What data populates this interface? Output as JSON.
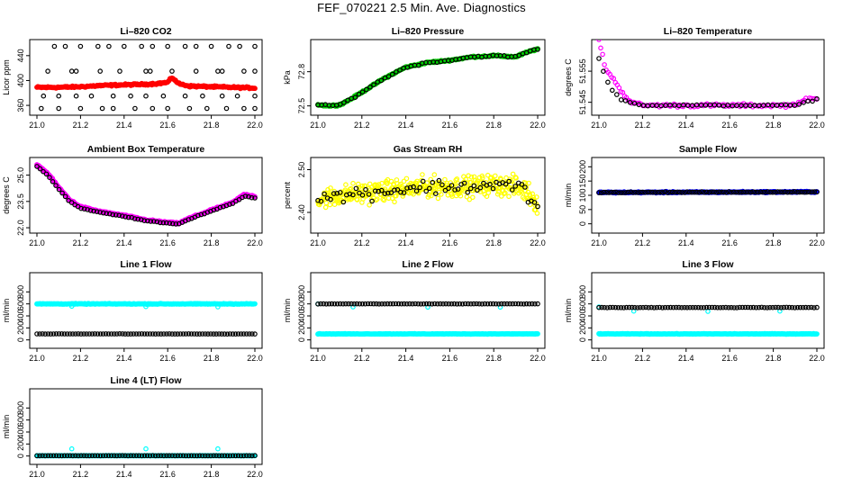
{
  "title": "FEF_070221  2.5 Min. Ave. Diagnostics",
  "colors": {
    "red": "#ff0000",
    "green": "#00cc00",
    "magenta": "#ff00ff",
    "yellow": "#ffff00",
    "blue": "#0000ff",
    "cyan": "#00ffff",
    "black": "#000000"
  },
  "chart_data": [
    {
      "id": "co2",
      "type": "scatter",
      "title": "Li–820 CO2",
      "ylabel": "Licor ppm",
      "xlim": [
        21.0,
        22.0
      ],
      "ylim": [
        350,
        460
      ],
      "xticks": [
        "21.0",
        "21.2",
        "21.4",
        "21.6",
        "21.8",
        "22.0"
      ],
      "yticks": [
        {
          "v": 360,
          "t": "360"
        },
        {
          "v": 400,
          "t": "400"
        },
        {
          "v": 440,
          "t": "440"
        }
      ],
      "series": [
        {
          "color": "red",
          "kind": "dense",
          "x": [
            21.0,
            21.1,
            21.2,
            21.3,
            21.4,
            21.5,
            21.55,
            21.6,
            21.62,
            21.65,
            21.7,
            21.8,
            21.9,
            22.0
          ],
          "y": [
            389,
            389,
            390,
            392,
            393,
            394,
            395,
            397,
            405,
            395,
            391,
            390,
            389,
            388
          ],
          "noise": 2
        },
        {
          "color": "black",
          "kind": "open",
          "x": [
            21.08,
            21.13,
            21.2,
            21.28,
            21.33,
            21.4,
            21.48,
            21.53,
            21.6,
            21.68,
            21.73,
            21.8,
            21.88,
            21.93,
            22.0
          ],
          "y": [
            455,
            455,
            455,
            455,
            455,
            455,
            455,
            455,
            455,
            455,
            455,
            455,
            455,
            455,
            455
          ]
        },
        {
          "color": "black",
          "kind": "open",
          "x": [
            21.05,
            21.16,
            21.18,
            21.29,
            21.38,
            21.5,
            21.52,
            21.62,
            21.73,
            21.83,
            21.85,
            21.95,
            22.0
          ],
          "y": [
            415,
            415,
            415,
            415,
            415,
            415,
            415,
            415,
            415,
            415,
            415,
            415,
            415
          ]
        },
        {
          "color": "black",
          "kind": "open",
          "x": [
            21.03,
            21.1,
            21.18,
            21.25,
            21.35,
            21.43,
            21.5,
            21.58,
            21.68,
            21.76,
            21.85,
            21.92,
            22.0
          ],
          "y": [
            375,
            375,
            375,
            375,
            375,
            375,
            375,
            375,
            375,
            375,
            375,
            375,
            375
          ]
        },
        {
          "color": "black",
          "kind": "open",
          "x": [
            21.02,
            21.1,
            21.2,
            21.3,
            21.35,
            21.45,
            21.53,
            21.6,
            21.7,
            21.78,
            21.87,
            21.95,
            22.0
          ],
          "y": [
            355,
            355,
            355,
            355,
            355,
            355,
            355,
            355,
            355,
            355,
            355,
            355,
            355
          ]
        }
      ]
    },
    {
      "id": "pressure",
      "type": "scatter",
      "title": "Li–820 Pressure",
      "ylabel": "kPa",
      "xlim": [
        21.0,
        22.0
      ],
      "ylim": [
        72.45,
        73.05
      ],
      "xticks": [
        "21.0",
        "21.2",
        "21.4",
        "21.6",
        "21.8",
        "22.0"
      ],
      "yticks": [
        {
          "v": 72.5,
          "t": "72.5"
        },
        {
          "v": 72.8,
          "t": "72.8"
        }
      ],
      "series": [
        {
          "color": "green",
          "kind": "dense",
          "x": [
            21.0,
            21.05,
            21.1,
            21.15,
            21.2,
            21.3,
            21.4,
            21.5,
            21.6,
            21.7,
            21.8,
            21.9,
            21.95,
            22.0
          ],
          "y": [
            72.51,
            72.5,
            72.51,
            72.56,
            72.62,
            72.74,
            72.84,
            72.88,
            72.9,
            72.93,
            72.94,
            72.93,
            72.97,
            73.0
          ],
          "noise": 0.01
        },
        {
          "color": "black",
          "kind": "trail",
          "x": [
            21.0,
            21.05,
            21.1,
            21.15,
            21.2,
            21.3,
            21.4,
            21.5,
            21.6,
            21.7,
            21.8,
            21.9,
            21.95,
            22.0
          ],
          "y": [
            72.51,
            72.5,
            72.51,
            72.56,
            72.62,
            72.74,
            72.84,
            72.88,
            72.9,
            72.93,
            72.94,
            72.93,
            72.97,
            73.0
          ],
          "n": 60,
          "noise": 0.01
        }
      ]
    },
    {
      "id": "temp",
      "type": "scatter",
      "title": "Li–820 Temperature",
      "ylabel": "degrees C",
      "xlim": [
        21.0,
        22.0
      ],
      "ylim": [
        51.542,
        51.564
      ],
      "xticks": [
        "21.0",
        "21.2",
        "21.4",
        "21.6",
        "21.8",
        "22.0"
      ],
      "yticks": [
        {
          "v": 51.545,
          "t": "51.545"
        },
        {
          "v": 51.555,
          "t": "51.555"
        }
      ],
      "series": [
        {
          "color": "magenta",
          "kind": "trail",
          "x": [
            21.0,
            21.03,
            21.06,
            21.09,
            21.12,
            21.15,
            21.2,
            21.4,
            21.6,
            21.8,
            21.88,
            21.92,
            21.96,
            22.0
          ],
          "y": [
            51.565,
            51.556,
            51.553,
            51.55,
            51.547,
            51.545,
            51.544,
            51.544,
            51.544,
            51.544,
            51.544,
            51.545,
            51.546,
            51.546
          ],
          "n": 120,
          "noise": 0.0008
        },
        {
          "color": "black",
          "kind": "trail",
          "x": [
            21.0,
            21.03,
            21.06,
            21.1,
            21.15,
            21.2,
            21.6,
            21.9,
            21.95,
            22.0
          ],
          "y": [
            51.559,
            51.553,
            51.549,
            51.546,
            51.545,
            51.544,
            51.544,
            51.544,
            51.545,
            51.546
          ],
          "n": 50,
          "noise": 0.0003
        }
      ]
    },
    {
      "id": "ambient",
      "type": "scatter",
      "title": "Ambient Box Temperature",
      "ylabel": "degrees C",
      "xlim": [
        21.0,
        22.0
      ],
      "ylim": [
        21.9,
        25.8
      ],
      "xticks": [
        "21.0",
        "21.2",
        "21.4",
        "21.6",
        "21.8",
        "22.0"
      ],
      "yticks": [
        {
          "v": 22,
          "t": "22.0"
        },
        {
          "v": 23.5,
          "t": "23.5"
        },
        {
          "v": 25,
          "t": "25.0"
        }
      ],
      "series": [
        {
          "color": "magenta",
          "kind": "dense",
          "x": [
            21.0,
            21.05,
            21.1,
            21.15,
            21.2,
            21.3,
            21.4,
            21.5,
            21.6,
            21.65,
            21.7,
            21.8,
            21.9,
            21.95,
            22.0
          ],
          "y": [
            25.6,
            25.1,
            24.3,
            23.6,
            23.2,
            22.9,
            22.7,
            22.45,
            22.3,
            22.25,
            22.55,
            23.0,
            23.45,
            23.9,
            23.8
          ],
          "noise": 0.06
        },
        {
          "color": "black",
          "kind": "trail",
          "x": [
            21.0,
            21.05,
            21.1,
            21.15,
            21.2,
            21.3,
            21.4,
            21.5,
            21.6,
            21.65,
            21.7,
            21.8,
            21.9,
            21.95,
            22.0
          ],
          "y": [
            25.5,
            25.0,
            24.2,
            23.5,
            23.1,
            22.85,
            22.65,
            22.4,
            22.25,
            22.2,
            22.5,
            22.95,
            23.4,
            23.8,
            23.7
          ],
          "n": 70,
          "noise": 0.03
        }
      ]
    },
    {
      "id": "rh",
      "type": "scatter",
      "title": "Gas Stream RH",
      "ylabel": "percent",
      "xlim": [
        21.0,
        22.0
      ],
      "ylim": [
        2.36,
        2.52
      ],
      "xticks": [
        "21.0",
        "21.2",
        "21.4",
        "21.6",
        "21.8",
        "22.0"
      ],
      "yticks": [
        {
          "v": 2.4,
          "t": "2.40"
        },
        {
          "v": 2.5,
          "t": "2.50"
        }
      ],
      "series": [
        {
          "color": "yellow",
          "kind": "scatter",
          "x": [
            21.0,
            21.1,
            21.2,
            21.3,
            21.4,
            21.5,
            21.6,
            21.7,
            21.8,
            21.9,
            21.95,
            22.0
          ],
          "y": [
            2.43,
            2.44,
            2.445,
            2.45,
            2.455,
            2.46,
            2.46,
            2.46,
            2.465,
            2.46,
            2.45,
            2.42
          ],
          "n": 420,
          "noise": 0.035
        },
        {
          "color": "black",
          "kind": "scatter",
          "x": [
            21.0,
            21.1,
            21.2,
            21.3,
            21.4,
            21.5,
            21.6,
            21.7,
            21.8,
            21.9,
            21.95,
            22.0
          ],
          "y": [
            2.43,
            2.44,
            2.445,
            2.45,
            2.455,
            2.46,
            2.46,
            2.46,
            2.465,
            2.46,
            2.45,
            2.41
          ],
          "n": 70,
          "noise": 0.025
        }
      ]
    },
    {
      "id": "sample",
      "type": "scatter",
      "title": "Sample Flow",
      "ylabel": "ml/min",
      "xlim": [
        21.0,
        22.0
      ],
      "ylim": [
        -20,
        220
      ],
      "xticks": [
        "21.0",
        "21.2",
        "21.4",
        "21.6",
        "21.8",
        "22.0"
      ],
      "yticks": [
        {
          "v": 0,
          "t": "0"
        },
        {
          "v": 50,
          "t": "50"
        },
        {
          "v": 100,
          "t": "100"
        },
        {
          "v": 150,
          "t": "150"
        },
        {
          "v": 200,
          "t": "200"
        }
      ],
      "series": [
        {
          "color": "blue",
          "kind": "band",
          "x": [
            21.0,
            22.0
          ],
          "y": [
            110,
            112
          ],
          "noise": 3
        },
        {
          "color": "black",
          "kind": "trail",
          "x": [
            21.0,
            22.0
          ],
          "y": [
            110,
            112
          ],
          "n": 90,
          "noise": 2
        }
      ]
    },
    {
      "id": "line1",
      "type": "scatter",
      "title": "Line 1 Flow",
      "ylabel": "ml/min",
      "xlim": [
        21.0,
        22.0
      ],
      "ylim": [
        -80,
        1060
      ],
      "xticks": [
        "21.0",
        "21.2",
        "21.4",
        "21.6",
        "21.8",
        "22.0"
      ],
      "yticks": [
        {
          "v": 0,
          "t": "0"
        },
        {
          "v": 200,
          "t": "200"
        },
        {
          "v": 400,
          "t": "400"
        },
        {
          "v": 600,
          "t": "600"
        },
        {
          "v": 800,
          "t": "800"
        }
      ],
      "series": [
        {
          "color": "cyan",
          "kind": "band",
          "x": [
            21.0,
            22.0
          ],
          "y": [
            600,
            600
          ],
          "noise": 8
        },
        {
          "color": "cyan",
          "kind": "open",
          "x": [
            21.16,
            21.5,
            21.83
          ],
          "y": [
            560,
            555,
            550
          ]
        },
        {
          "color": "black",
          "kind": "trail",
          "x": [
            21.0,
            22.0
          ],
          "y": [
            100,
            100
          ],
          "n": 80,
          "noise": 3
        }
      ]
    },
    {
      "id": "line2",
      "type": "scatter",
      "title": "Line 2 Flow",
      "ylabel": "ml/min",
      "xlim": [
        21.0,
        22.0
      ],
      "ylim": [
        -80,
        1060
      ],
      "xticks": [
        "21.0",
        "21.2",
        "21.4",
        "21.6",
        "21.8",
        "22.0"
      ],
      "yticks": [
        {
          "v": 0,
          "t": "0"
        },
        {
          "v": 200,
          "t": "200"
        },
        {
          "v": 400,
          "t": "400"
        },
        {
          "v": 600,
          "t": "600"
        },
        {
          "v": 800,
          "t": "800"
        }
      ],
      "series": [
        {
          "color": "cyan",
          "kind": "band",
          "x": [
            21.0,
            22.0
          ],
          "y": [
            100,
            100
          ],
          "noise": 6
        },
        {
          "color": "cyan",
          "kind": "open",
          "x": [
            21.16,
            21.5,
            21.83,
            21.0
          ],
          "y": [
            550,
            545,
            545,
            600
          ]
        },
        {
          "color": "black",
          "kind": "trail",
          "x": [
            21.0,
            22.0
          ],
          "y": [
            600,
            600
          ],
          "n": 80,
          "noise": 4
        }
      ]
    },
    {
      "id": "line3",
      "type": "scatter",
      "title": "Line 3 Flow",
      "ylabel": "ml/min",
      "xlim": [
        21.0,
        22.0
      ],
      "ylim": [
        -80,
        1060
      ],
      "xticks": [
        "21.0",
        "21.2",
        "21.4",
        "21.6",
        "21.8",
        "22.0"
      ],
      "yticks": [
        {
          "v": 0,
          "t": "0"
        },
        {
          "v": 200,
          "t": "200"
        },
        {
          "v": 400,
          "t": "400"
        },
        {
          "v": 600,
          "t": "600"
        },
        {
          "v": 800,
          "t": "800"
        }
      ],
      "series": [
        {
          "color": "cyan",
          "kind": "band",
          "x": [
            21.0,
            22.0
          ],
          "y": [
            100,
            100
          ],
          "noise": 6
        },
        {
          "color": "cyan",
          "kind": "open",
          "x": [
            21.0,
            21.16,
            21.5,
            21.83
          ],
          "y": [
            550,
            480,
            475,
            480
          ]
        },
        {
          "color": "black",
          "kind": "trail",
          "x": [
            21.0,
            22.0
          ],
          "y": [
            540,
            540
          ],
          "n": 80,
          "noise": 5
        }
      ]
    },
    {
      "id": "line4",
      "type": "scatter",
      "title": "Line 4 (LT) Flow",
      "ylabel": "ml/min",
      "xlim": [
        21.0,
        22.0
      ],
      "ylim": [
        -80,
        1060
      ],
      "xticks": [
        "21.0",
        "21.2",
        "21.4",
        "21.6",
        "21.8",
        "22.0"
      ],
      "yticks": [
        {
          "v": 0,
          "t": "0"
        },
        {
          "v": 200,
          "t": "200"
        },
        {
          "v": 400,
          "t": "400"
        },
        {
          "v": 600,
          "t": "600"
        },
        {
          "v": 800,
          "t": "800"
        }
      ],
      "series": [
        {
          "color": "cyan",
          "kind": "band",
          "x": [
            21.0,
            22.0
          ],
          "y": [
            5,
            5
          ],
          "noise": 3
        },
        {
          "color": "cyan",
          "kind": "open",
          "x": [
            21.16,
            21.5,
            21.83
          ],
          "y": [
            120,
            120,
            120
          ]
        },
        {
          "color": "black",
          "kind": "trail",
          "x": [
            21.0,
            22.0
          ],
          "y": [
            5,
            5
          ],
          "n": 80,
          "noise": 2
        }
      ]
    }
  ]
}
